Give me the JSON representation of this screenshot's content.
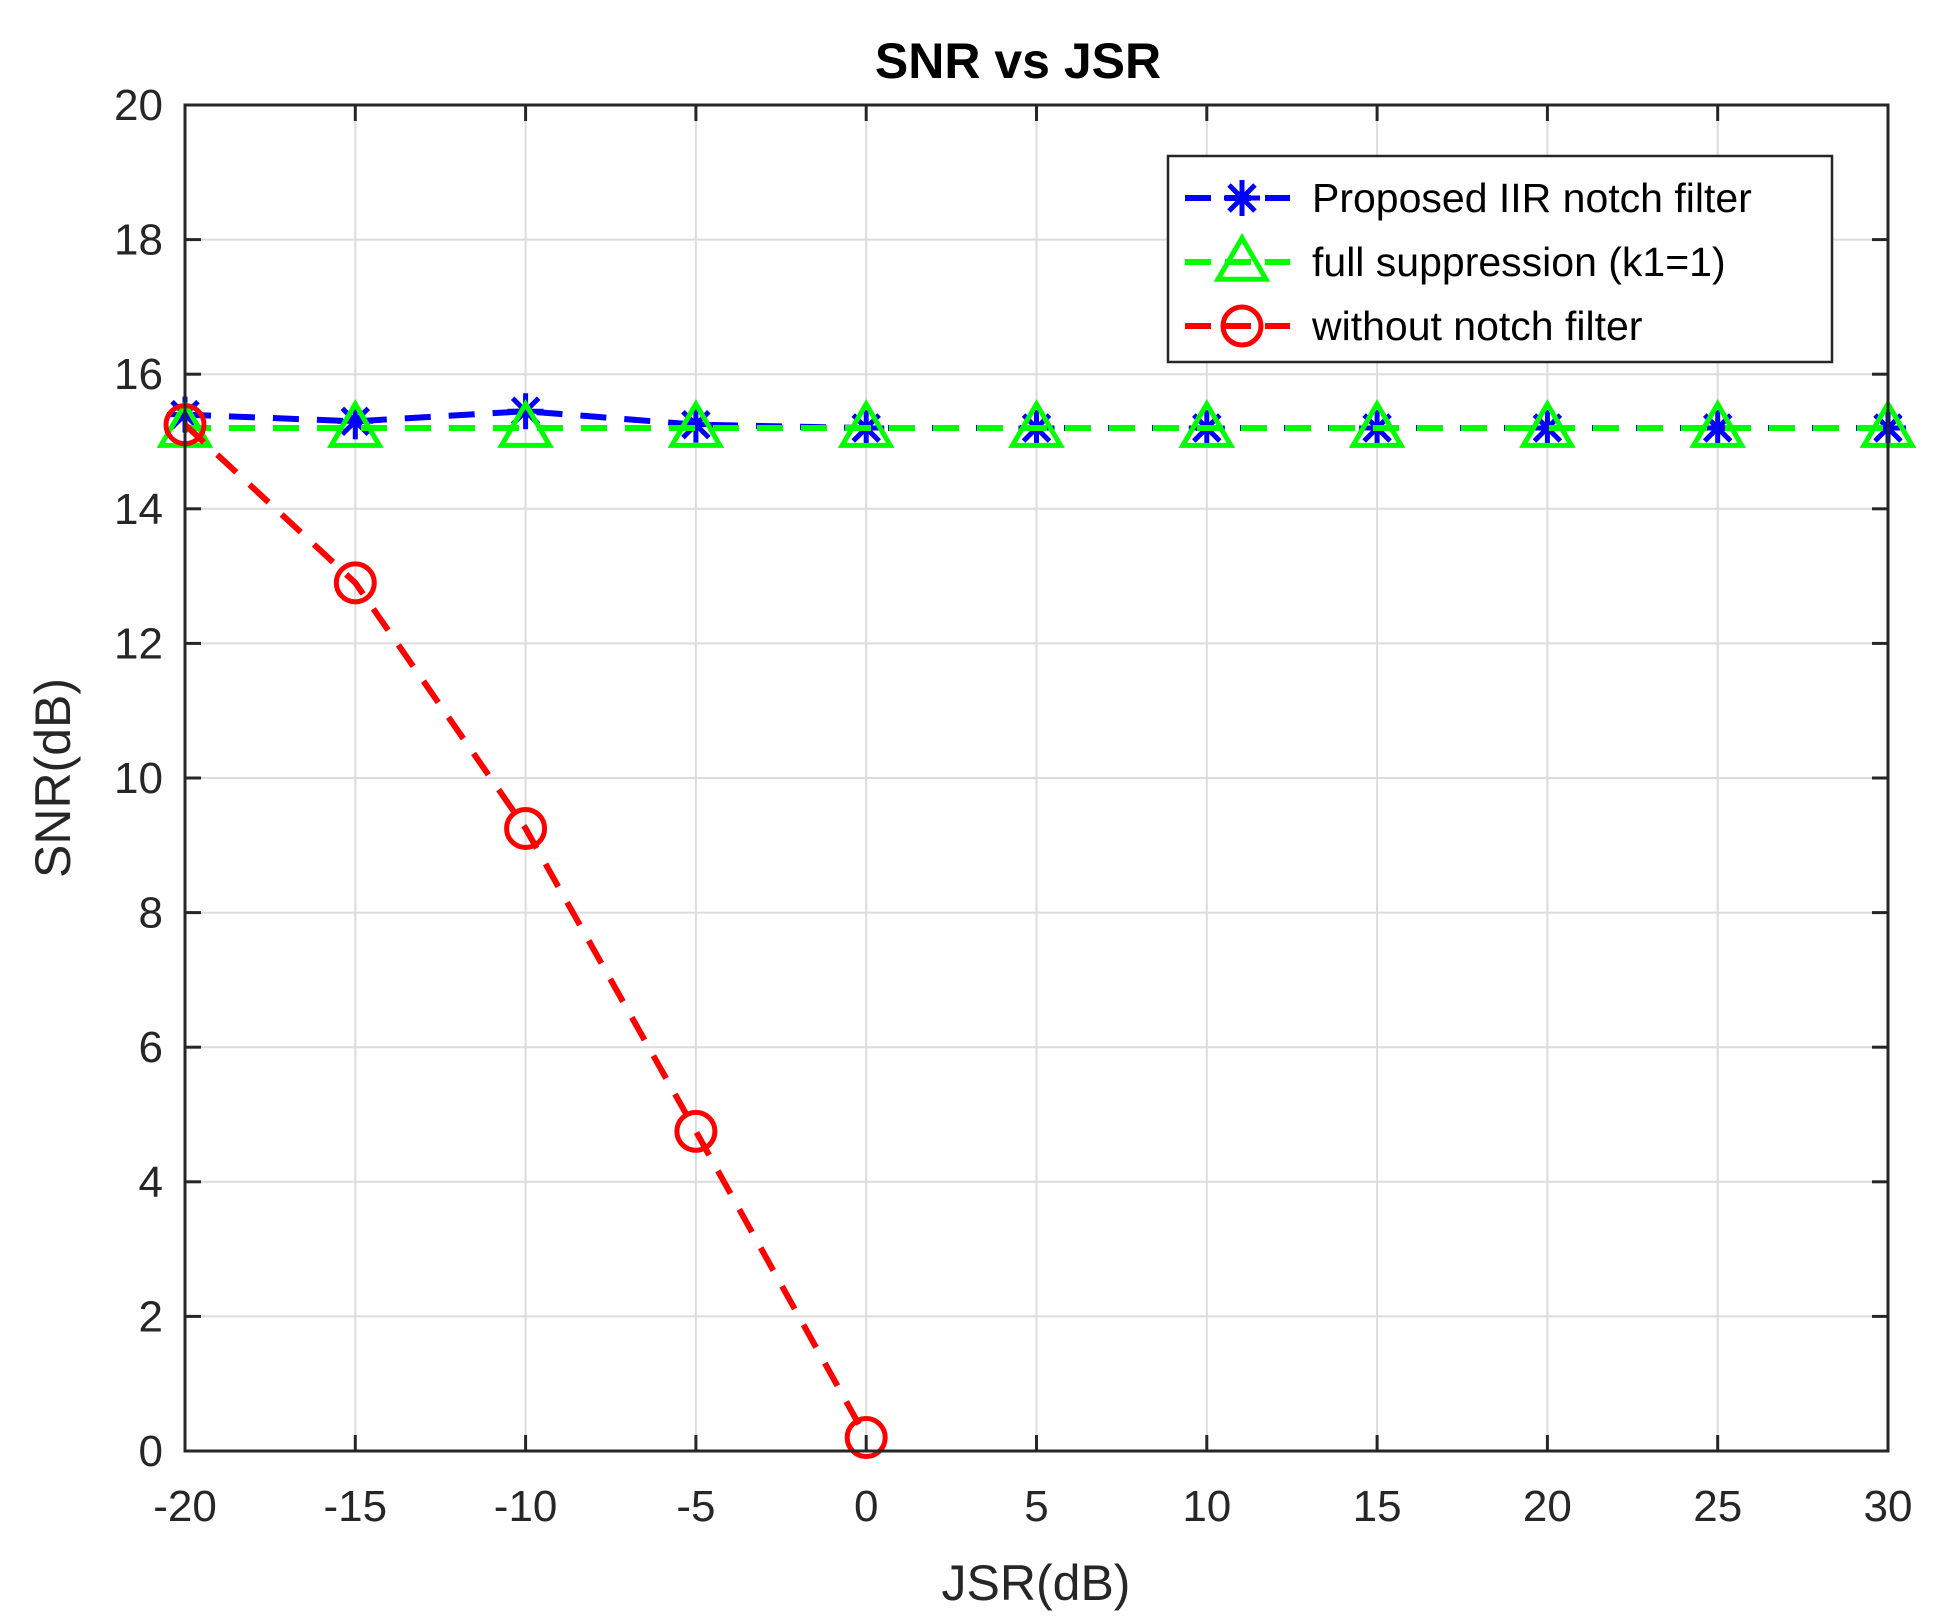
{
  "chart_data": {
    "type": "line",
    "title": "SNR vs JSR",
    "xlabel": "JSR(dB)",
    "ylabel": "SNR(dB)",
    "xlim": [
      -20,
      30
    ],
    "ylim": [
      0,
      20
    ],
    "xticks": [
      -20,
      -15,
      -10,
      -5,
      0,
      5,
      10,
      15,
      20,
      25,
      30
    ],
    "yticks": [
      0,
      2,
      4,
      6,
      8,
      10,
      12,
      14,
      16,
      18,
      20
    ],
    "grid": true,
    "legend_position": "top-right",
    "series": [
      {
        "name": "Proposed IIR notch filter",
        "color": "#0000ff",
        "marker": "asterisk",
        "line_style": "dashed",
        "x": [
          -20,
          -15,
          -10,
          -5,
          0,
          5,
          10,
          15,
          20,
          25,
          30
        ],
        "values": [
          15.4,
          15.3,
          15.45,
          15.25,
          15.2,
          15.2,
          15.2,
          15.2,
          15.2,
          15.2,
          15.2
        ]
      },
      {
        "name": "full suppression (k1=1)",
        "color": "#00ff00",
        "marker": "triangle",
        "line_style": "dashed",
        "x": [
          -20,
          -15,
          -10,
          -5,
          0,
          5,
          10,
          15,
          20,
          25,
          30
        ],
        "values": [
          15.2,
          15.2,
          15.2,
          15.2,
          15.2,
          15.2,
          15.2,
          15.2,
          15.2,
          15.2,
          15.2
        ]
      },
      {
        "name": "without notch filter",
        "color": "#ff0000",
        "marker": "circle",
        "line_style": "dashed",
        "x": [
          -20,
          -15,
          -10,
          -5,
          0
        ],
        "values": [
          15.25,
          12.9,
          9.25,
          4.75,
          0.2
        ]
      }
    ]
  }
}
